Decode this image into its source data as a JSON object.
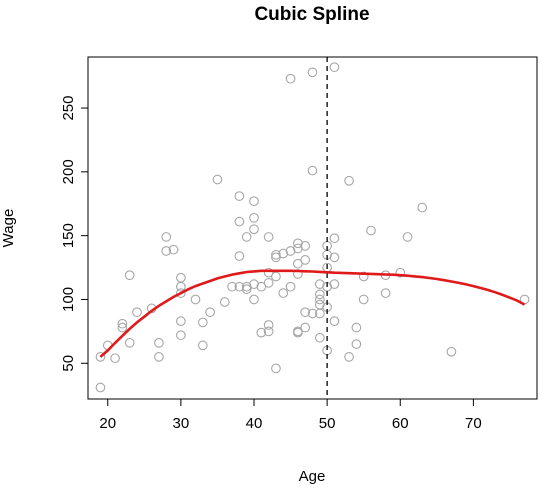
{
  "chart_data": {
    "type": "scatter",
    "title": "Cubic Spline",
    "xlabel": "Age",
    "ylabel": "Wage",
    "xlim": [
      17.3,
      78.7
    ],
    "ylim": [
      22,
      290
    ],
    "x_ticks": [
      20,
      30,
      40,
      50,
      60,
      70
    ],
    "y_ticks": [
      50,
      100,
      150,
      200,
      250
    ],
    "knot_x": 50,
    "point_color": "#a6a6a6",
    "curve_color": "#e0191b",
    "points": [
      [
        19,
        31
      ],
      [
        19,
        55
      ],
      [
        20,
        64
      ],
      [
        21,
        54
      ],
      [
        22,
        78
      ],
      [
        22,
        81
      ],
      [
        23,
        66
      ],
      [
        23,
        119
      ],
      [
        24,
        90
      ],
      [
        26,
        93
      ],
      [
        27,
        55
      ],
      [
        27,
        66
      ],
      [
        28,
        138
      ],
      [
        28,
        149
      ],
      [
        29,
        139
      ],
      [
        30,
        72
      ],
      [
        30,
        83
      ],
      [
        30,
        105
      ],
      [
        30,
        110
      ],
      [
        30,
        117
      ],
      [
        32,
        100
      ],
      [
        33,
        64
      ],
      [
        33,
        82
      ],
      [
        34,
        90
      ],
      [
        35,
        194
      ],
      [
        36,
        98
      ],
      [
        37,
        110
      ],
      [
        38,
        110
      ],
      [
        38,
        134
      ],
      [
        38,
        161
      ],
      [
        38,
        181
      ],
      [
        39,
        108
      ],
      [
        39,
        110
      ],
      [
        39,
        149
      ],
      [
        40,
        100
      ],
      [
        40,
        112
      ],
      [
        40,
        155
      ],
      [
        40,
        164
      ],
      [
        40,
        177
      ],
      [
        41,
        74
      ],
      [
        41,
        110
      ],
      [
        42,
        75
      ],
      [
        42,
        80
      ],
      [
        42,
        113
      ],
      [
        42,
        121
      ],
      [
        42,
        149
      ],
      [
        43,
        46
      ],
      [
        43,
        118
      ],
      [
        43,
        133
      ],
      [
        43,
        135
      ],
      [
        44,
        105
      ],
      [
        44,
        136
      ],
      [
        45,
        110
      ],
      [
        45,
        138
      ],
      [
        45,
        273
      ],
      [
        46,
        74
      ],
      [
        46,
        75
      ],
      [
        46,
        120
      ],
      [
        46,
        128
      ],
      [
        46,
        140
      ],
      [
        46,
        144
      ],
      [
        47,
        78
      ],
      [
        47,
        90
      ],
      [
        47,
        131
      ],
      [
        47,
        142
      ],
      [
        48,
        89
      ],
      [
        48,
        201
      ],
      [
        48,
        278
      ],
      [
        49,
        70
      ],
      [
        49,
        89
      ],
      [
        49,
        96
      ],
      [
        49,
        100
      ],
      [
        49,
        104
      ],
      [
        49,
        112
      ],
      [
        50,
        60
      ],
      [
        50,
        94
      ],
      [
        50,
        110
      ],
      [
        50,
        125
      ],
      [
        50,
        135
      ],
      [
        50,
        142
      ],
      [
        51,
        83
      ],
      [
        51,
        112
      ],
      [
        51,
        133
      ],
      [
        51,
        148
      ],
      [
        51,
        282
      ],
      [
        53,
        55
      ],
      [
        53,
        193
      ],
      [
        54,
        65
      ],
      [
        54,
        78
      ],
      [
        55,
        100
      ],
      [
        55,
        118
      ],
      [
        56,
        154
      ],
      [
        58,
        105
      ],
      [
        58,
        119
      ],
      [
        60,
        121
      ],
      [
        61,
        149
      ],
      [
        63,
        172
      ],
      [
        67,
        59
      ],
      [
        77,
        100
      ]
    ],
    "curve": {
      "x": [
        19,
        20,
        21,
        22,
        23,
        24,
        25,
        26,
        27,
        28,
        29,
        30,
        31,
        32,
        33,
        34,
        35,
        36,
        37,
        38,
        39,
        40,
        41,
        42,
        43,
        44,
        45,
        46,
        47,
        48,
        49,
        50,
        51,
        52,
        53,
        54,
        55,
        56,
        57,
        58,
        59,
        60,
        61,
        62,
        63,
        64,
        65,
        66,
        67,
        68,
        69,
        70,
        71,
        72,
        73,
        74,
        75,
        76,
        77
      ],
      "y": [
        55,
        60,
        66,
        71.5,
        77,
        82,
        86.5,
        91,
        95,
        98.5,
        102,
        105,
        108,
        110.5,
        112.5,
        114.5,
        116.5,
        118,
        119.5,
        120.5,
        121.5,
        122,
        122.5,
        122.5,
        122.5,
        122.5,
        122.5,
        122.3,
        122.1,
        121.9,
        121.6,
        121.3,
        121,
        120.8,
        120.6,
        120.4,
        120.2,
        120,
        119.8,
        119.6,
        119.4,
        119,
        118.6,
        118.1,
        117.5,
        116.8,
        116,
        115.1,
        114.1,
        113,
        111.8,
        110.5,
        109,
        107.4,
        105.6,
        103.6,
        101.4,
        99,
        96
      ]
    }
  }
}
